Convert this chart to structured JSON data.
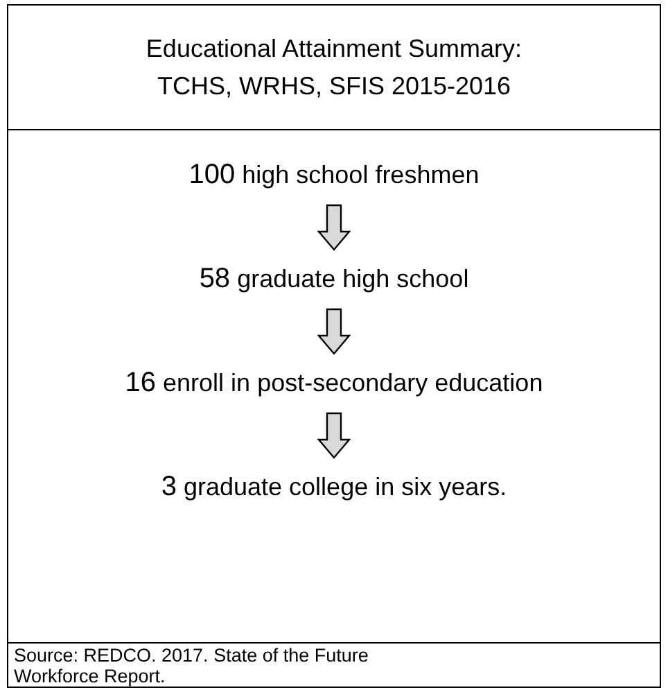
{
  "chart_data": {
    "type": "other",
    "title": "Educational Attainment Summary: TCHS, WRHS, SFIS 2015-2016",
    "categories": [
      "high school freshmen",
      "graduate high school",
      "enroll in post-secondary education",
      "graduate college in six years."
    ],
    "values": [
      100,
      58,
      16,
      3
    ],
    "data_labels": true,
    "annotations": [
      "Source: REDCO. 2017. State of the Future Workforce Report."
    ]
  }
}
